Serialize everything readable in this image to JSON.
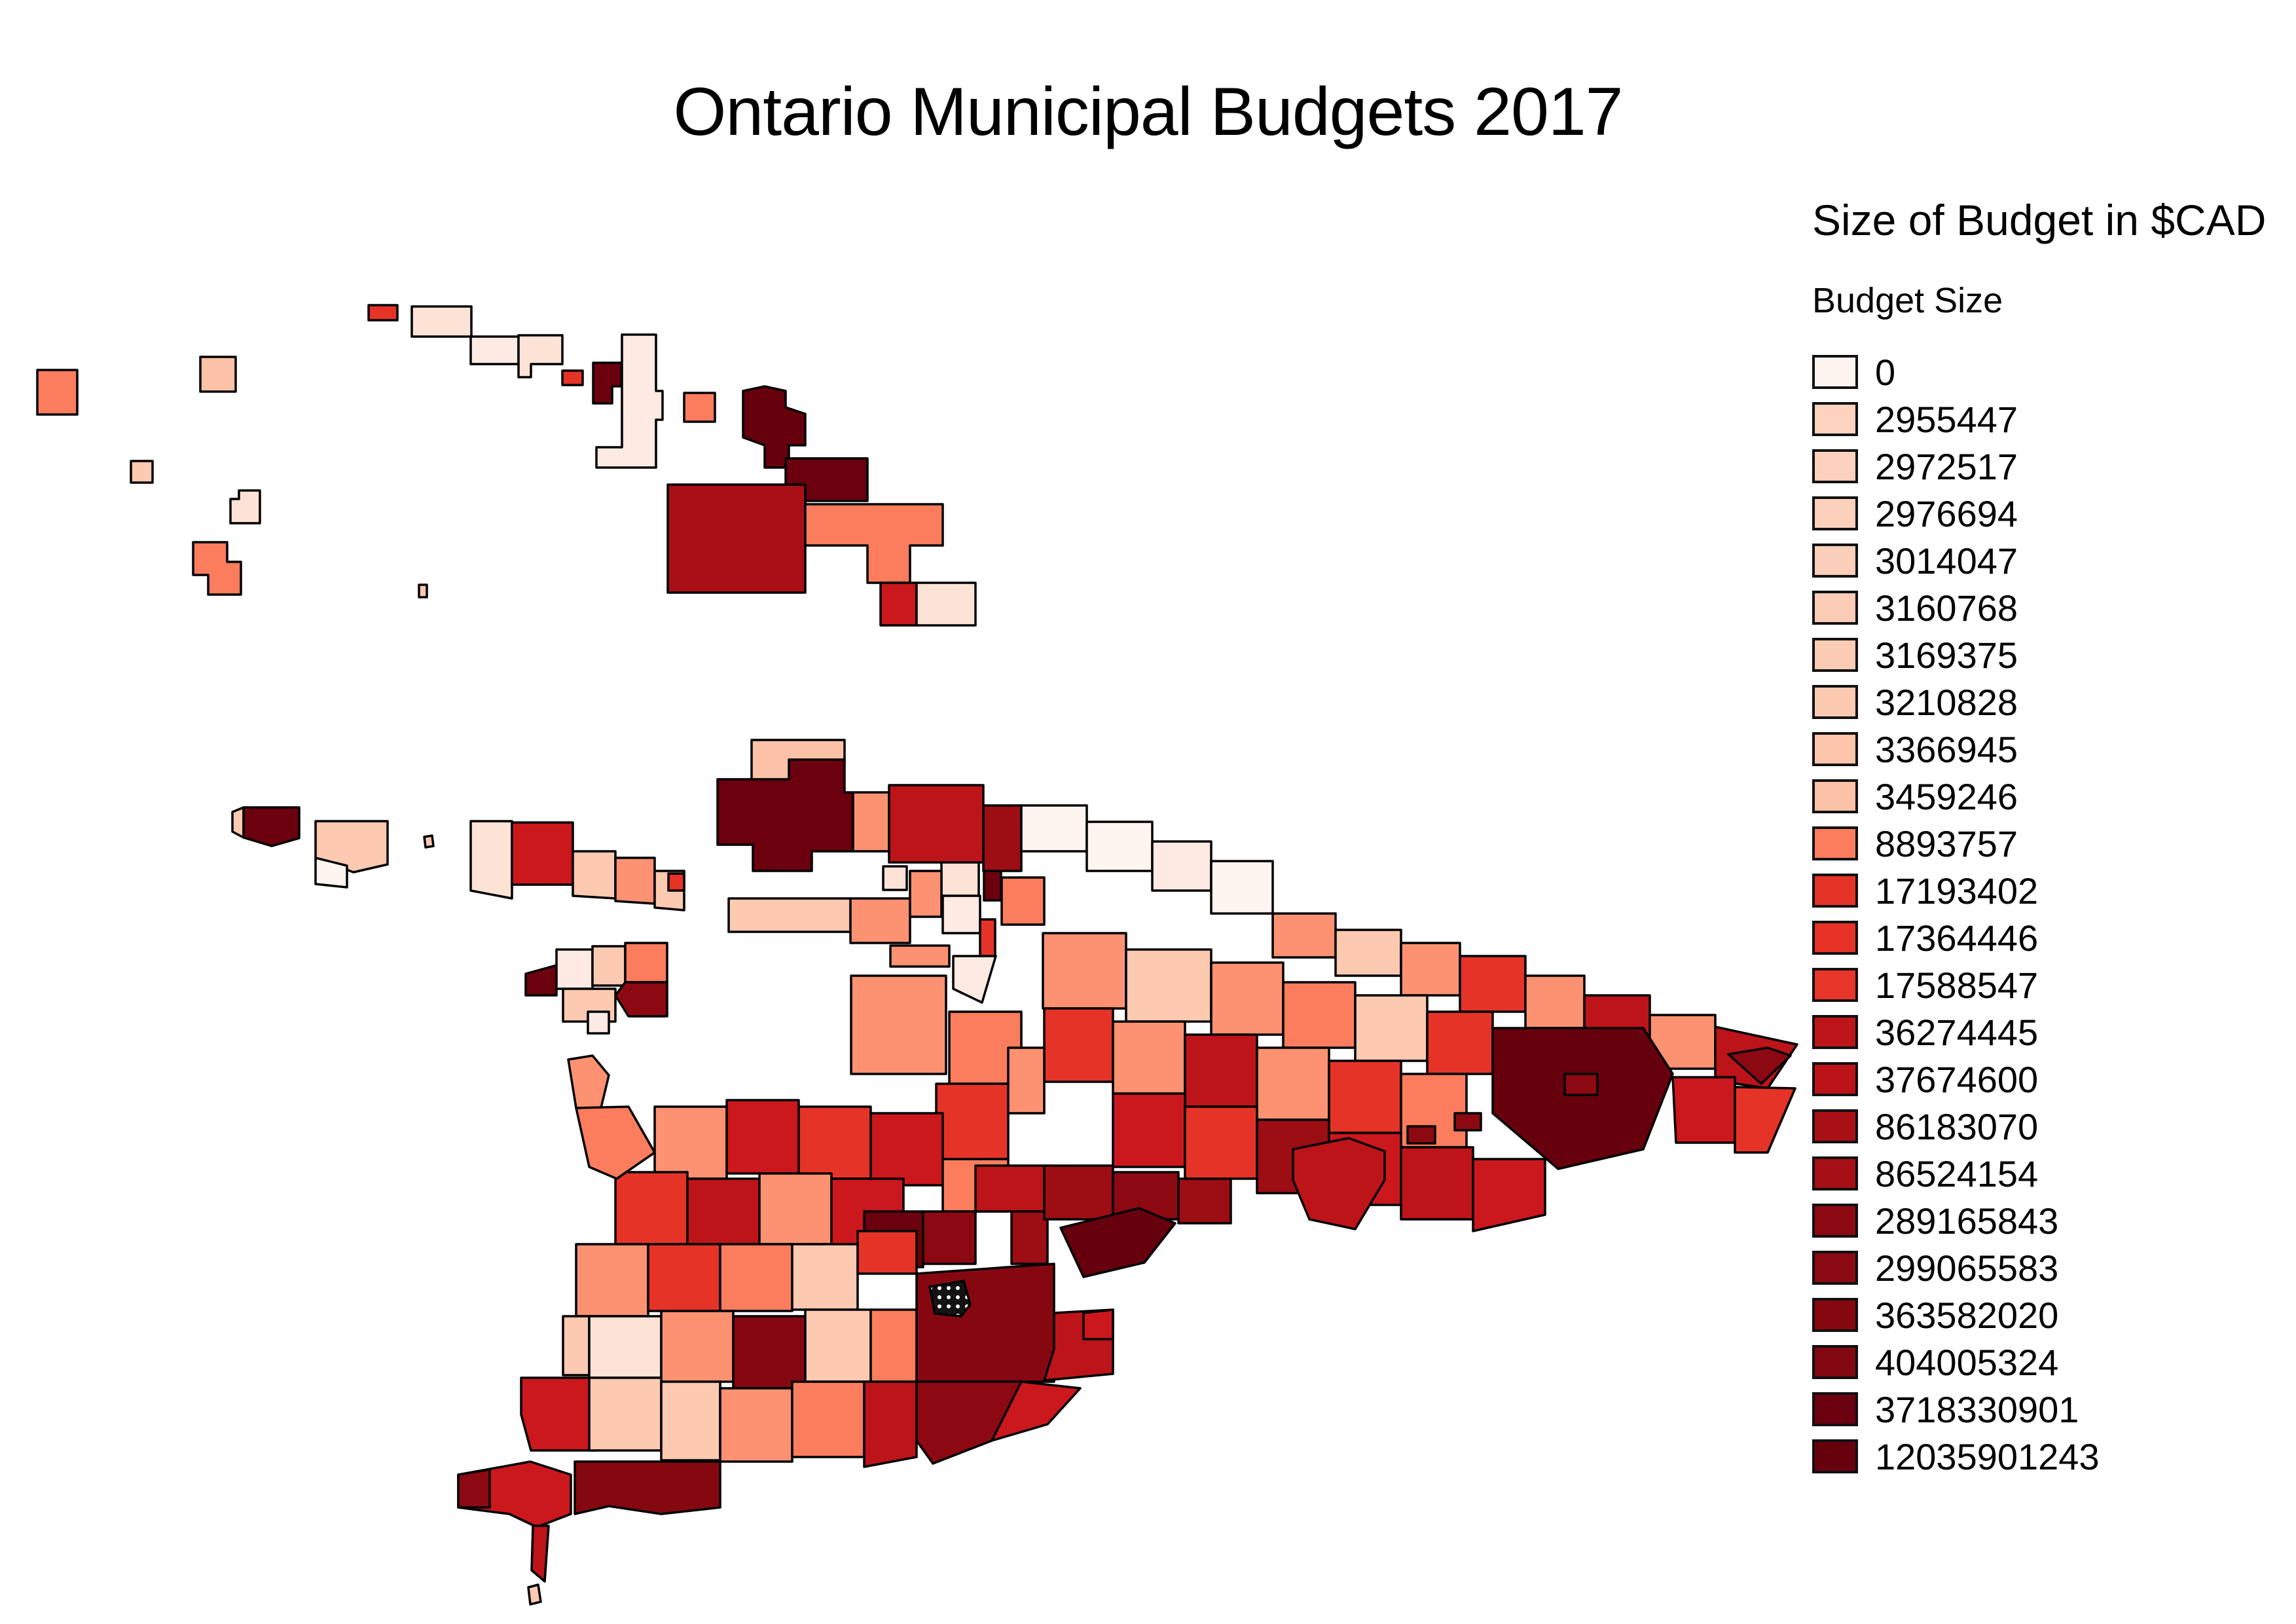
{
  "title": "Ontario Municipal Budgets 2017",
  "legend": {
    "title": "Size of Budget in $CAD",
    "subtitle": "Budget Size",
    "items": [
      {
        "label": "0",
        "color": "#fff5f0"
      },
      {
        "label": "2955447",
        "color": "#fdd2bf"
      },
      {
        "label": "2972517",
        "color": "#fdd1bd"
      },
      {
        "label": "2976694",
        "color": "#fdd0bc"
      },
      {
        "label": "3014047",
        "color": "#fccfba"
      },
      {
        "label": "3160768",
        "color": "#fcccb6"
      },
      {
        "label": "3169375",
        "color": "#fccbb4"
      },
      {
        "label": "3210828",
        "color": "#fcc9b1"
      },
      {
        "label": "3366945",
        "color": "#fcc5ab"
      },
      {
        "label": "3459246",
        "color": "#fcc2a7"
      },
      {
        "label": "8893757",
        "color": "#fb7d5d"
      },
      {
        "label": "17193402",
        "color": "#e63328"
      },
      {
        "label": "17364446",
        "color": "#e63227"
      },
      {
        "label": "17588547",
        "color": "#e73529"
      },
      {
        "label": "36274445",
        "color": "#bd1419"
      },
      {
        "label": "37674600",
        "color": "#bc1319"
      },
      {
        "label": "86183070",
        "color": "#a81016"
      },
      {
        "label": "86524154",
        "color": "#a70f16"
      },
      {
        "label": "289165843",
        "color": "#8c0912"
      },
      {
        "label": "299065583",
        "color": "#8b0912"
      },
      {
        "label": "363582020",
        "color": "#850811"
      },
      {
        "label": "404005324",
        "color": "#820710"
      },
      {
        "label": "3718330901",
        "color": "#6b000f"
      },
      {
        "label": "12035901243",
        "color": "#67000d"
      }
    ]
  },
  "map": {
    "background": "#ffffff",
    "stroke": "#000000",
    "stroke_width": 3.5,
    "no_data_note": "dotted-hatch municipality (no data)",
    "hatched_region": {
      "p": "1420,1965 1472,1956 1482,1992 1468,2010 1428,2006"
    },
    "regions": [
      {
        "c": "#fb7d5d",
        "p": "57,565 118,565 118,633 57,633"
      },
      {
        "c": "#fcc2a7",
        "p": "306,545 360,545 360,598 306,598"
      },
      {
        "c": "#fcc9b1",
        "p": "200,704 233,704 233,737 200,737"
      },
      {
        "c": "#fde3d5",
        "p": "352,762 365,762 365,749 397,749 397,799 352,799"
      },
      {
        "c": "#fb7d5d",
        "p": "295,828 347,828 347,858 368,858 368,908 318,908 318,878 295,878"
      },
      {
        "c": "#fcc9b1",
        "p": "640,893 652,893 652,912 640,912"
      },
      {
        "c": "#fcc9b1",
        "p": "648,1278 660,1276 662,1292 650,1294"
      },
      {
        "c": "#e63328",
        "p": "563,466 607,466 607,489 563,489"
      },
      {
        "c": "#fde3d5",
        "p": "629,468 720,468 720,514 629,514"
      },
      {
        "c": "#fdeae2",
        "p": "719,514 792,514 792,556 719,556"
      },
      {
        "c": "#fde3d5",
        "p": "792,512 859,512 859,556 811,556 811,576 792,576"
      },
      {
        "c": "#e63328",
        "p": "859,566 890,566 890,588 859,588"
      },
      {
        "c": "#6b000f",
        "p": "906,554 949,554 949,590 935,590 935,616 906,616"
      },
      {
        "c": "#fdeae2",
        "p": "950,511 1002,511 1002,597 1012,597 1012,641 1002,641 1002,714 911,714 911,683 950,683"
      },
      {
        "c": "#fb7d5d",
        "p": "1045,600 1092,600 1092,644 1045,644"
      },
      {
        "c": "#67000d",
        "p": "1135,597 1168,590 1200,597 1200,622 1230,632 1230,680 1205,680 1205,714 1168,714 1168,680 1135,668"
      },
      {
        "c": "#a81016",
        "p": "1020,740 1230,740 1230,905 1020,905"
      },
      {
        "c": "#6b000f",
        "p": "1200,700 1325,700 1325,765 1230,765 1230,740 1200,740"
      },
      {
        "c": "#fb7d5d",
        "p": "1230,770 1440,770 1440,833 1390,833 1390,890 1325,890 1325,833 1230,833"
      },
      {
        "c": "#cb181d",
        "p": "1345,890 1400,890 1400,955 1345,955"
      },
      {
        "c": "#fde3d5",
        "p": "1400,890 1490,890 1490,955 1400,955"
      },
      {
        "c": "#fcc2a7",
        "p": "1148,1130 1290,1130 1290,1165 1240,1165 1240,1195 1148,1195"
      },
      {
        "c": "#fde3d5",
        "p": "1349,1323 1385,1323 1385,1359 1349,1359"
      },
      {
        "c": "#fdeae2",
        "p": "1438,1253 1495,1253 1495,1310 1438,1310"
      },
      {
        "c": "#fde3d5",
        "p": "1495,1253 1552,1253 1552,1310 1495,1310"
      },
      {
        "c": "#fde3d5",
        "p": "1438,1310 1495,1310 1495,1368 1438,1368"
      },
      {
        "c": "#6b000f",
        "p": "1503,1318 1529,1318 1529,1375 1503,1375"
      },
      {
        "c": "#fdeae2",
        "p": "1440,1368 1497,1368 1497,1425 1440,1425"
      },
      {
        "c": "#e63328",
        "p": "1497,1404 1520,1404 1520,1460 1497,1460"
      },
      {
        "c": "#fdeae2",
        "p": "1456,1460 1521,1460 1500,1531 1456,1510"
      },
      {
        "c": "#fc9272",
        "p": "1300,1490 1445,1490 1445,1640 1300,1640"
      },
      {
        "c": "#fcc9b1",
        "p": "355,1240 372,1233 372,1279 355,1270"
      },
      {
        "c": "#6b000f",
        "p": "372,1233 457,1233 457,1280 415,1292 372,1279"
      },
      {
        "c": "#fcc9b1",
        "p": "482,1254 592,1254 592,1320 540,1332 482,1310"
      },
      {
        "c": "#fff5f0",
        "p": "482,1310 530,1322 530,1355 482,1350"
      },
      {
        "c": "#fde3d5",
        "p": "719,1254 782,1254 782,1372 719,1360"
      },
      {
        "c": "#cb181d",
        "p": "782,1256 875,1256 875,1351 782,1351"
      },
      {
        "c": "#fcc9b1",
        "p": "875,1300 940,1300 940,1372 875,1368"
      },
      {
        "c": "#fc9272",
        "p": "940,1310 1000,1310 1000,1380 940,1376"
      },
      {
        "c": "#fcc9b1",
        "p": "1000,1330 1045,1330 1045,1390 1000,1386"
      },
      {
        "c": "#e63328",
        "p": "1021,1334 1045,1334 1045,1360 1021,1360"
      },
      {
        "c": "#6b000f",
        "p": "1096,1190 1205,1190 1205,1160 1290,1160 1290,1210 1303,1210 1303,1300 1240,1300 1240,1330 1150,1330 1150,1290 1096,1290"
      },
      {
        "c": "#fc9272",
        "p": "1303,1210 1358,1210 1358,1300 1303,1300"
      },
      {
        "c": "#bd1419",
        "p": "1358,1199 1502,1199 1502,1317 1358,1317"
      },
      {
        "c": "#9c0d14",
        "p": "1502,1230 1560,1230 1560,1330 1502,1330"
      },
      {
        "c": "#fcc9b1",
        "p": "1113,1372 1299,1372 1299,1423 1113,1423"
      },
      {
        "c": "#fc9272",
        "p": "1299,1372 1390,1372 1390,1440 1299,1440"
      },
      {
        "c": "#fc9272",
        "p": "1390,1330 1438,1330 1438,1400 1390,1400"
      },
      {
        "c": "#fb7d5d",
        "p": "1530,1340 1595,1340 1595,1412 1530,1412"
      },
      {
        "c": "#fc9272",
        "p": "1360,1444 1450,1444 1450,1476 1360,1476"
      },
      {
        "c": "#6b000f",
        "p": "803,1487 850,1474 850,1520 803,1520"
      },
      {
        "c": "#fdeae2",
        "p": "850,1450 905,1450 905,1510 850,1510"
      },
      {
        "c": "#fcc9b1",
        "p": "905,1445 955,1445 955,1505 905,1505"
      },
      {
        "c": "#fb7d5d",
        "p": "955,1440 1019,1440 1019,1500 955,1500"
      },
      {
        "c": "#8c0912",
        "p": "955,1500 1019,1500 1019,1552 960,1552 940,1520"
      },
      {
        "c": "#fcc9b1",
        "p": "860,1510 940,1510 940,1560 860,1560"
      },
      {
        "c": "#fdeae2",
        "p": "898,1545 930,1545 930,1578 898,1578"
      },
      {
        "c": "#fff5f0",
        "p": "1560,1230 1660,1230 1660,1300 1560,1300"
      },
      {
        "c": "#fff5f0",
        "p": "1660,1255 1760,1255 1760,1330 1660,1330"
      },
      {
        "c": "#fdeae2",
        "p": "1760,1285 1850,1285 1850,1360 1760,1360"
      },
      {
        "c": "#fff5f0",
        "p": "1850,1315 1944,1315 1944,1395 1850,1395"
      },
      {
        "c": "#fc9272",
        "p": "1944,1395 2040,1395 2040,1462 1944,1462"
      },
      {
        "c": "#fcc9b1",
        "p": "2040,1420 2140,1420 2140,1490 2040,1490"
      },
      {
        "c": "#fc9272",
        "p": "2140,1440 2230,1440 2230,1520 2140,1520"
      },
      {
        "c": "#e63328",
        "p": "2230,1460 2330,1460 2330,1545 2230,1545"
      },
      {
        "c": "#fc9272",
        "p": "2330,1490 2420,1490 2420,1570 2330,1570"
      },
      {
        "c": "#bd1419",
        "p": "2420,1520 2520,1520 2520,1600 2420,1600"
      },
      {
        "c": "#fc9272",
        "p": "2520,1550 2620,1550 2620,1632 2520,1632"
      },
      {
        "c": "#bd1419",
        "p": "2620,1568 2745,1595 2700,1662 2620,1650"
      },
      {
        "c": "#8c0912",
        "p": "2640,1610 2700,1600 2735,1612 2690,1655"
      },
      {
        "c": "#fc9272",
        "p": "1593,1425 1720,1425 1720,1540 1593,1540"
      },
      {
        "c": "#fcc9b1",
        "p": "1720,1450 1850,1450 1850,1560 1720,1560"
      },
      {
        "c": "#fc9272",
        "p": "1850,1470 1960,1470 1960,1580 1850,1580"
      },
      {
        "c": "#fb7d5d",
        "p": "1960,1500 2070,1500 2070,1600 1960,1600"
      },
      {
        "c": "#fcc9b1",
        "p": "2070,1520 2180,1520 2180,1620 2070,1620"
      },
      {
        "c": "#e63328",
        "p": "2180,1545 2280,1545 2280,1640 2180,1640"
      },
      {
        "c": "#67000d",
        "p": "2280,1570 2510,1570 2555,1640 2510,1755 2380,1785 2280,1700"
      },
      {
        "c": "#cb181d",
        "p": "2555,1645 2650,1645 2650,1745 2560,1745"
      },
      {
        "c": "#e63328",
        "p": "2650,1660 2742,1662 2700,1760 2650,1760"
      },
      {
        "c": "#e63328",
        "p": "1595,1540 1700,1540 1700,1652 1595,1652"
      },
      {
        "c": "#fc9272",
        "p": "1700,1560 1810,1560 1810,1670 1700,1670"
      },
      {
        "c": "#bd1419",
        "p": "1810,1580 1920,1580 1920,1690 1810,1690"
      },
      {
        "c": "#fc9272",
        "p": "1920,1600 2030,1600 2030,1710 1920,1710"
      },
      {
        "c": "#e63328",
        "p": "2030,1620 2140,1620 2140,1730 2030,1730"
      },
      {
        "c": "#fb7d5d",
        "p": "2140,1640 2240,1640 2240,1752 2140,1752"
      },
      {
        "c": "#cb181d",
        "p": "1700,1670 1810,1670 1810,1782 1700,1782"
      },
      {
        "c": "#e63328",
        "p": "1810,1690 1920,1690 1920,1800 1810,1800"
      },
      {
        "c": "#9c0d14",
        "p": "1920,1710 2030,1710 2030,1822 1920,1822"
      },
      {
        "c": "#cb181d",
        "p": "2030,1730 2140,1730 2140,1840 2030,1840"
      },
      {
        "c": "#bd1419",
        "p": "2140,1752 2250,1752 2250,1862 2140,1862"
      },
      {
        "c": "#cb181d",
        "p": "2250,1770 2360,1770 2360,1855 2250,1880"
      },
      {
        "c": "#bd1419",
        "p": "1975,1755 2060,1738 2115,1758 2115,1802 2070,1877 2000,1862 1975,1802"
      },
      {
        "c": "#8c0912",
        "p": "2150,1720 2192,1720 2192,1746 2150,1746"
      },
      {
        "c": "#8c0912",
        "p": "2222,1700 2262,1700 2262,1726 2222,1726"
      },
      {
        "c": "#8c0912",
        "p": "2390,1640 2440,1640 2440,1672 2390,1672"
      },
      {
        "c": "#fb7d5d",
        "p": "1450,1545 1560,1545 1560,1655 1450,1655"
      },
      {
        "c": "#e63328",
        "p": "1430,1655 1540,1655 1540,1770 1430,1770"
      },
      {
        "c": "#fc9272",
        "p": "1540,1600 1595,1600 1595,1700 1540,1700"
      },
      {
        "c": "#fc9272",
        "p": "1000,1690 1110,1690 1110,1800 1000,1800"
      },
      {
        "c": "#cb181d",
        "p": "1110,1680 1220,1680 1220,1792 1110,1792"
      },
      {
        "c": "#e63328",
        "p": "1220,1690 1330,1690 1330,1800 1220,1800"
      },
      {
        "c": "#cb181d",
        "p": "1330,1700 1440,1700 1440,1810 1330,1810"
      },
      {
        "c": "#fb7d5d",
        "p": "1440,1770 1540,1770 1540,1850 1440,1850"
      },
      {
        "c": "#e63328",
        "p": "940,1790 1050,1790 1050,1900 940,1900"
      },
      {
        "c": "#bd1419",
        "p": "1050,1800 1160,1800 1160,1900 1050,1900"
      },
      {
        "c": "#fc9272",
        "p": "1160,1792 1270,1792 1270,1900 1160,1900"
      },
      {
        "c": "#cb181d",
        "p": "1270,1800 1380,1800 1380,1912 1270,1912"
      },
      {
        "c": "#6b000f",
        "p": "1320,1850 1410,1850 1410,1935 1320,1935"
      },
      {
        "c": "#8c0912",
        "p": "1410,1850 1490,1850 1490,1930 1410,1930"
      },
      {
        "c": "#bd1419",
        "p": "1490,1780 1595,1780 1595,1850 1490,1850"
      },
      {
        "c": "#9c0d14",
        "p": "1545,1850 1600,1850 1600,1930 1545,1930"
      },
      {
        "c": "#9c0d14",
        "p": "1595,1780 1700,1780 1700,1862 1595,1862"
      },
      {
        "c": "#8c0912",
        "p": "1700,1790 1800,1790 1800,1862 1700,1862"
      },
      {
        "c": "#9c0d14",
        "p": "1800,1800 1880,1800 1880,1868 1800,1868"
      },
      {
        "c": "#67000d",
        "p": "1620,1875 1740,1845 1795,1868 1748,1928 1655,1950"
      },
      {
        "c": "#fc9272",
        "p": "880,1900 990,1900 990,2010 880,2010"
      },
      {
        "c": "#e63328",
        "p": "990,1900 1100,1900 1100,2002 990,2002"
      },
      {
        "c": "#fb7d5d",
        "p": "1100,1900 1210,1900 1210,2002 1100,2002"
      },
      {
        "c": "#fcc9b1",
        "p": "1210,1900 1310,1900 1310,2000 1210,2000"
      },
      {
        "c": "#e63328",
        "p": "1310,1880 1400,1880 1400,1945 1310,1945"
      },
      {
        "c": "#fcc9b1",
        "p": "860,2010 900,2010 900,2100 860,2100"
      },
      {
        "c": "#cb181d",
        "p": "796,2104 910,2104 910,2215 811,2215 796,2160"
      },
      {
        "c": "#fde3d5",
        "p": "900,2010 1010,2010 1010,2104 900,2104"
      },
      {
        "c": "#fc9272",
        "p": "1010,2002 1120,2002 1120,2110 1010,2110"
      },
      {
        "c": "#850811",
        "p": "1120,2010 1230,2010 1230,2120 1120,2120"
      },
      {
        "c": "#fcc9b1",
        "p": "1230,2000 1330,2000 1330,2110 1230,2110"
      },
      {
        "c": "#fb7d5d",
        "p": "1330,2000 1400,2000 1400,2110 1330,2110"
      },
      {
        "c": "#850811",
        "p": "1400,1945 1610,1930 1610,2110 1400,2110"
      },
      {
        "c": "#fcc9b1",
        "p": "900,2104 1010,2104 1010,2215 900,2215"
      },
      {
        "c": "#fcc9b1",
        "p": "1010,2110 1100,2110 1100,2230 1010,2230"
      },
      {
        "c": "#fc9272",
        "p": "1100,2120 1210,2120 1210,2232 1100,2232"
      },
      {
        "c": "#fb7d5d",
        "p": "1210,2110 1320,2110 1320,2225 1210,2225"
      },
      {
        "c": "#bd1419",
        "p": "1320,2110 1400,2110 1400,2225 1320,2240"
      },
      {
        "c": "#8c0912",
        "p": "1400,2110 1560,2110 1515,2200 1425,2235 1400,2200"
      },
      {
        "c": "#cb181d",
        "p": "1560,2110 1650,2120 1600,2175 1515,2200"
      },
      {
        "c": "#bd1419",
        "p": "1610,2005 1700,2000 1700,2098 1595,2108 1610,2060"
      },
      {
        "c": "#cb181d",
        "p": "1655,2005 1700,2000 1700,2045 1655,2045"
      },
      {
        "c": "#850811",
        "p": "878,2232 1100,2232 1100,2302 1010,2312 930,2300 878,2312"
      },
      {
        "c": "#cb181d",
        "p": "700,2252 810,2232 872,2252 872,2312 820,2332 778,2312 700,2302"
      },
      {
        "c": "#8c0912",
        "p": "700,2252 748,2244 748,2302 700,2302"
      },
      {
        "c": "#bd1419",
        "p": "814,2330 838,2330 832,2415 812,2398"
      },
      {
        "c": "#fcc9b1",
        "p": "807,2424 822,2420 826,2446 810,2450"
      },
      {
        "c": "#fc9272",
        "p": "868,1618 905,1612 930,1642 916,1700 880,1692"
      },
      {
        "c": "#fb7d5d",
        "p": "880,1692 960,1690 1000,1760 942,1800 900,1782"
      }
    ]
  }
}
